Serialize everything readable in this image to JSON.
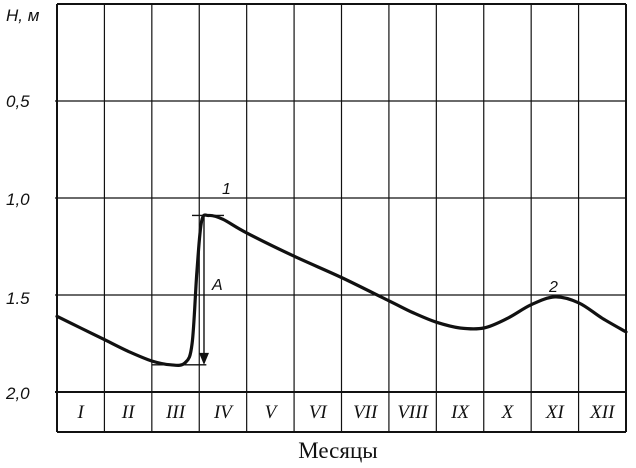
{
  "chart_data": {
    "type": "line",
    "ylabel": "H, м",
    "xlabel": "Месяцы",
    "y_inverted": true,
    "ylim": [
      0,
      2.0
    ],
    "yticks": [
      "0,5",
      "1,0",
      "1.5",
      "2,0"
    ],
    "ytick_values": [
      0.5,
      1.0,
      1.5,
      2.0
    ],
    "categories": [
      "I",
      "II",
      "III",
      "IV",
      "V",
      "VI",
      "VII",
      "VIII",
      "IX",
      "X",
      "XI",
      "XII"
    ],
    "series": [
      {
        "x": [
          0.0,
          0.5,
          1.0,
          1.5,
          2.0,
          2.4,
          2.7,
          2.85,
          2.95,
          3.05,
          3.2,
          3.5,
          4.0,
          5.0,
          6.0,
          7.0,
          7.5,
          8.0,
          8.5,
          9.0,
          9.5,
          10.0,
          10.5,
          11.0,
          11.5,
          12.0
        ],
        "y": [
          1.61,
          1.67,
          1.73,
          1.79,
          1.84,
          1.86,
          1.85,
          1.75,
          1.38,
          1.12,
          1.09,
          1.11,
          1.18,
          1.3,
          1.41,
          1.53,
          1.59,
          1.64,
          1.67,
          1.67,
          1.62,
          1.55,
          1.51,
          1.54,
          1.62,
          1.69
        ]
      }
    ],
    "annotations": [
      {
        "label": "1",
        "x": 3.5,
        "y": 1.09
      },
      {
        "label": "2",
        "x": 10.5,
        "y": 1.51
      },
      {
        "label": "A",
        "x": 3.15,
        "y": 1.47
      }
    ],
    "amplitude_arrow": {
      "label": "A",
      "x": 3.1,
      "y_from": 1.09,
      "y_to": 1.86
    },
    "grid": true
  }
}
